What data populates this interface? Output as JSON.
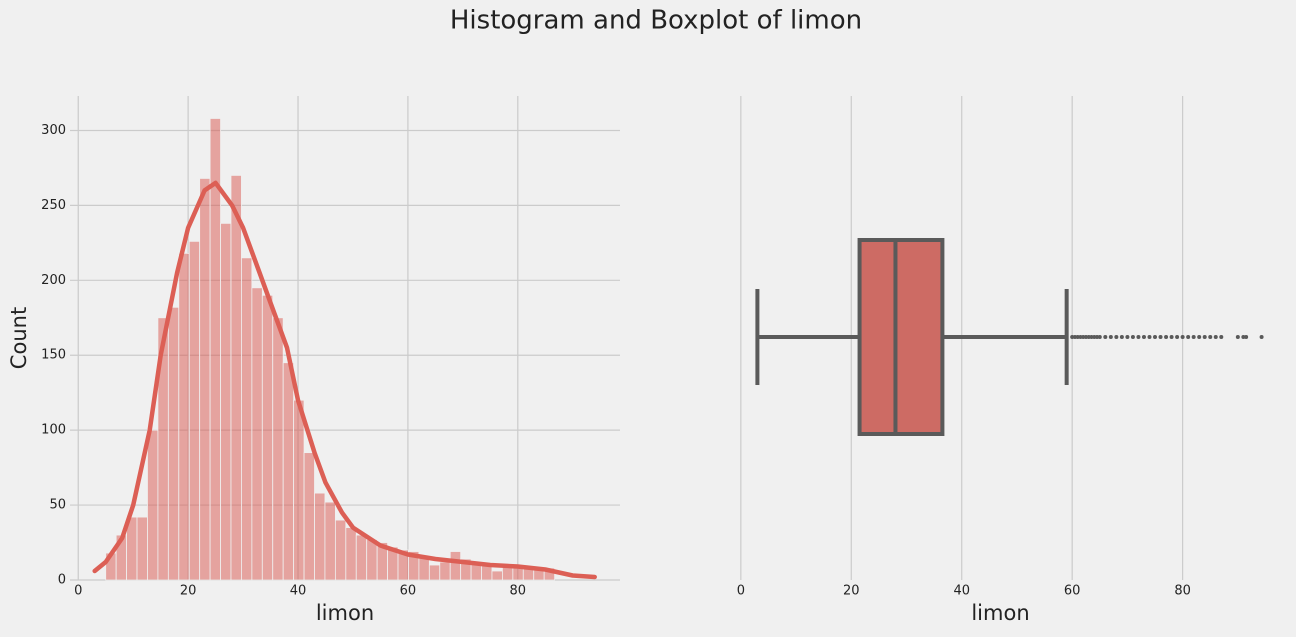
{
  "title": "Histogram and Boxplot of limon",
  "chart_data": [
    {
      "type": "histogram",
      "xlabel": "limon",
      "ylabel": "Count",
      "bins": [
        5,
        6.9,
        8.8,
        10.7,
        12.6,
        14.5,
        16.4,
        18.3,
        20.2,
        22.1,
        24,
        25.9,
        27.8,
        29.7,
        31.6,
        33.5,
        35.4,
        37.3,
        39.2,
        41.1,
        43,
        44.9,
        46.8,
        48.7,
        50.6,
        52.5,
        54.4,
        56.3,
        58.2,
        60.1,
        62,
        63.9,
        65.8,
        67.7,
        69.6,
        71.5,
        73.4,
        75.3,
        77.2,
        79.1,
        81,
        82.9,
        84.8,
        86.7
      ],
      "values": [
        18,
        30,
        42,
        42,
        100,
        175,
        182,
        218,
        226,
        268,
        308,
        238,
        270,
        215,
        195,
        190,
        175,
        145,
        120,
        85,
        58,
        52,
        40,
        35,
        30,
        27,
        25,
        22,
        20,
        19,
        15,
        10,
        12,
        19,
        14,
        12,
        10,
        6,
        9,
        8,
        9,
        7,
        8
      ],
      "color": "#d9564e",
      "kde_x": [
        3,
        5,
        8,
        10,
        13,
        15,
        18,
        20,
        23,
        25,
        28,
        30,
        33,
        35,
        38,
        40,
        43,
        45,
        48,
        50,
        55,
        60,
        65,
        70,
        75,
        80,
        85,
        90,
        94
      ],
      "kde_values": [
        6,
        12,
        28,
        50,
        100,
        150,
        205,
        235,
        260,
        265,
        250,
        235,
        205,
        185,
        155,
        120,
        85,
        65,
        45,
        35,
        23,
        17,
        14,
        12,
        10,
        9,
        7,
        3,
        2
      ],
      "kde_color": "#dc5f55",
      "xlim": [
        -1.5,
        98.6
      ],
      "xticks": [
        0,
        20,
        40,
        60,
        80
      ],
      "ylim": [
        0,
        323
      ],
      "yticks": [
        0,
        50,
        100,
        150,
        200,
        250,
        300
      ],
      "grid": true
    },
    {
      "type": "box",
      "xlabel": "limon",
      "min": 3,
      "q1": 21.5,
      "median": 28,
      "q3": 36.5,
      "max": 59,
      "outliers": [
        60,
        60.5,
        61,
        61.5,
        62,
        62.5,
        63,
        63.5,
        64,
        64.5,
        65,
        66,
        67,
        68,
        69,
        70,
        71,
        72,
        73,
        74,
        75,
        76,
        77,
        78,
        79,
        80,
        81,
        82,
        83,
        84,
        85,
        86,
        87,
        90,
        91,
        91.5,
        94.3
      ],
      "color": "#cd6b64",
      "line_color": "#5a5a5a",
      "xlim": [
        -1.6,
        98.9
      ],
      "xticks": [
        0,
        20,
        40,
        60,
        80
      ],
      "grid": true
    }
  ]
}
